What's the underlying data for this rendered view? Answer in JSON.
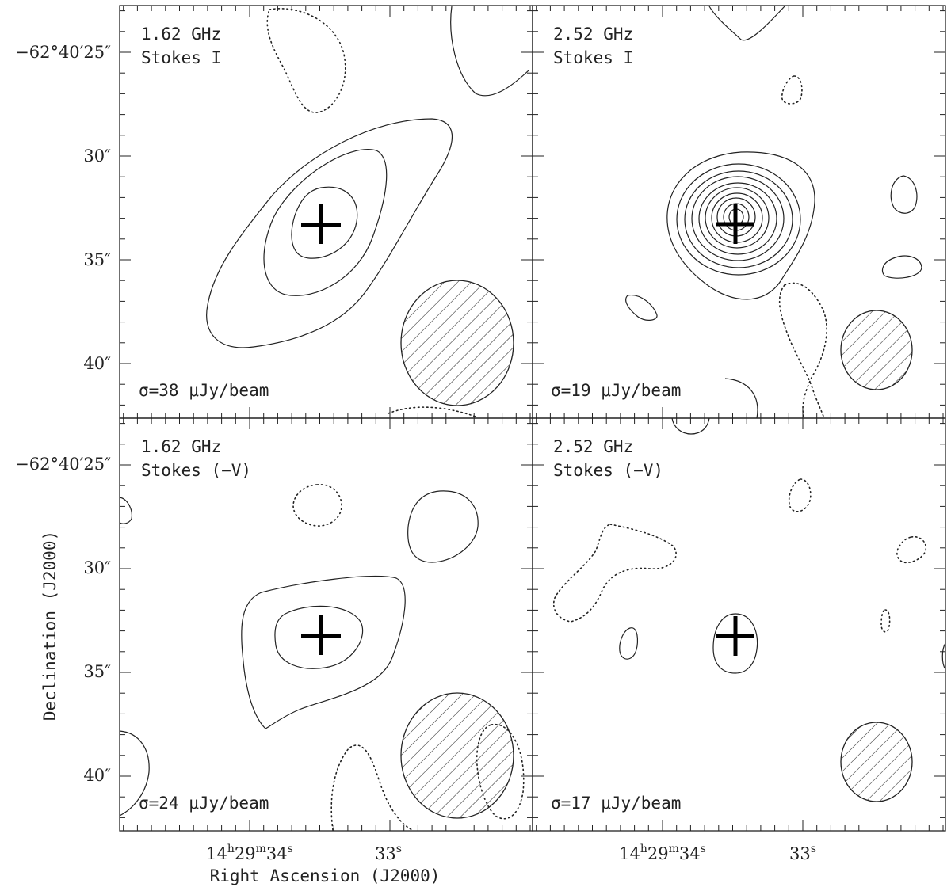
{
  "chart_data": {
    "type": "contour",
    "xlabel": "Right Ascension (J2000)",
    "ylabel": "Declination (J2000)",
    "dec_tick_labels": [
      "−62°40′25″",
      "30″",
      "35″",
      "40″"
    ],
    "dec_tick_values_arcsec": [
      25,
      30,
      35,
      40
    ],
    "ra_tick_labels": [
      {
        "h": "14",
        "m": "29",
        "s": "34",
        "value_s": 34
      },
      {
        "s": "33",
        "value_s": 33
      }
    ],
    "source_marker": {
      "ra_s": 33.5,
      "dec_arcsec": 33.5
    },
    "panels": [
      {
        "id": "p1",
        "frequency": "1.62 GHz",
        "stokes": "Stokes I",
        "sigma": "σ=38 μJy/beam"
      },
      {
        "id": "p2",
        "frequency": "2.52 GHz",
        "stokes": "Stokes I",
        "sigma": "σ=19 μJy/beam"
      },
      {
        "id": "p3",
        "frequency": "1.62 GHz",
        "stokes": "Stokes (−V)",
        "sigma": "σ=24 μJy/beam"
      },
      {
        "id": "p4",
        "frequency": "2.52 GHz",
        "stokes": "Stokes (−V)",
        "sigma": "σ=17 μJy/beam"
      }
    ]
  }
}
